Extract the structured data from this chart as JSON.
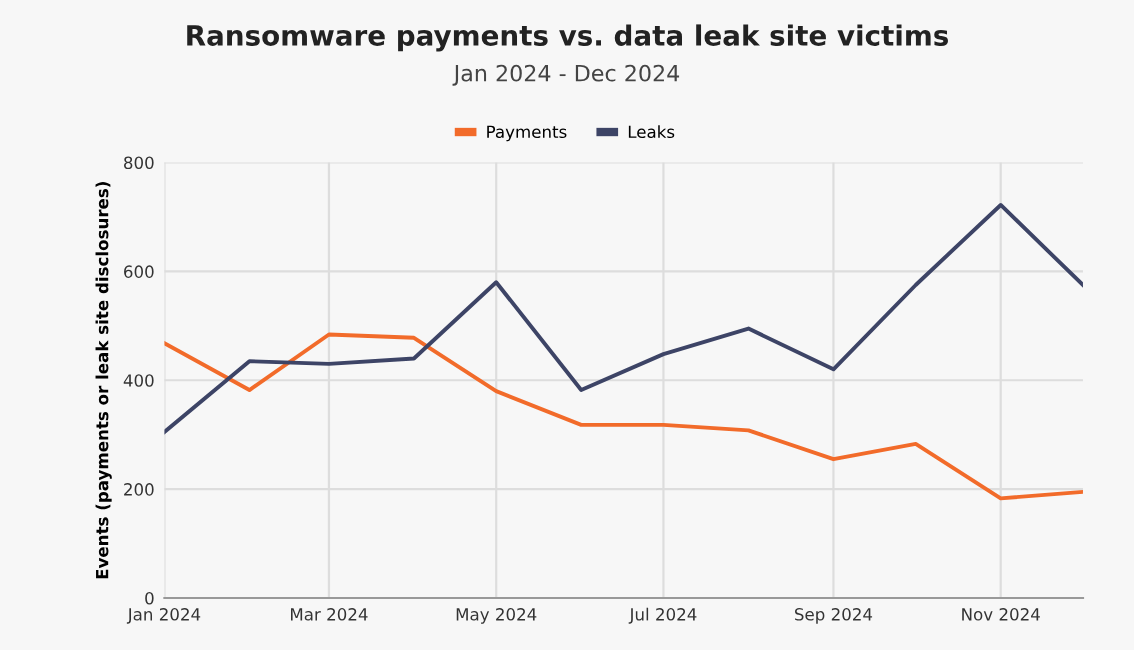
{
  "chart_data": {
    "type": "line",
    "title": "Ransomware payments vs. data leak site victims",
    "subtitle": "Jan 2024 - Dec 2024",
    "ylabel": "Events (payments or leak site disclosures)",
    "x": [
      "2024-01",
      "2024-02",
      "2024-03",
      "2024-04",
      "2024-05",
      "2024-06",
      "2024-07",
      "2024-08",
      "2024-09",
      "2024-10",
      "2024-11",
      "2024-12"
    ],
    "series": [
      {
        "name": "Payments",
        "color": "#f26b2a",
        "values": [
          468,
          382,
          484,
          478,
          380,
          318,
          318,
          308,
          255,
          283,
          183,
          195
        ]
      },
      {
        "name": "Leaks",
        "color": "#3d4466",
        "values": [
          305,
          435,
          430,
          440,
          580,
          382,
          448,
          495,
          420,
          575,
          722,
          575
        ]
      }
    ],
    "xlim": [
      "2024-01",
      "2024-12"
    ],
    "xticks": [
      {
        "value": "2024-01",
        "label": "Jan 2024"
      },
      {
        "value": "2024-03",
        "label": "Mar 2024"
      },
      {
        "value": "2024-05",
        "label": "May 2024"
      },
      {
        "value": "2024-07",
        "label": "Jul 2024"
      },
      {
        "value": "2024-09",
        "label": "Sep 2024"
      },
      {
        "value": "2024-11",
        "label": "Nov 2024"
      }
    ],
    "ylim": [
      0,
      800
    ],
    "yticks": [
      0,
      200,
      400,
      600,
      800
    ],
    "grid": true,
    "legend": "top",
    "marker": "none",
    "line_style": "solid"
  }
}
